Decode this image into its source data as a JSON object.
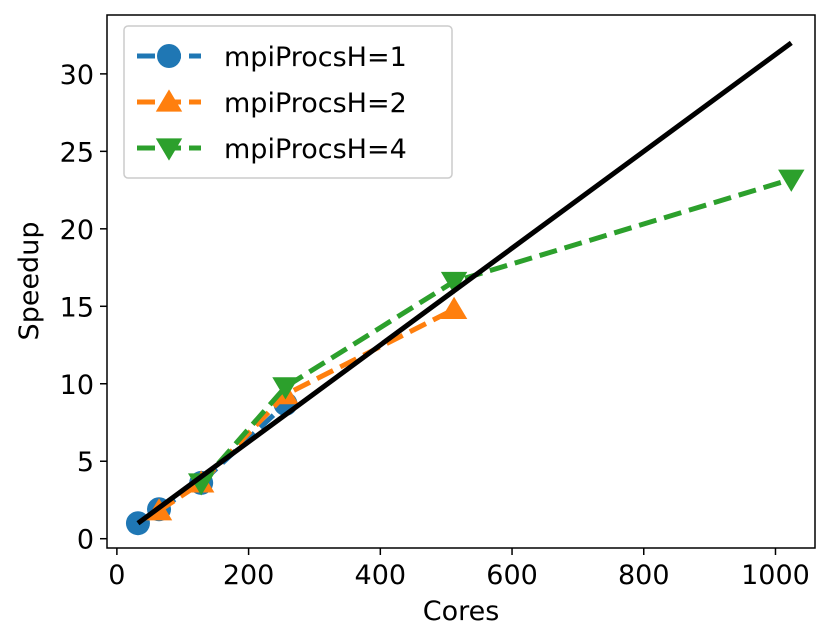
{
  "chart_data": {
    "type": "line",
    "xlabel": "Cores",
    "ylabel": "Speedup",
    "xlim": [
      -15,
      1060
    ],
    "ylim": [
      -0.6,
      33.8
    ],
    "xticks": [
      0,
      200,
      400,
      600,
      800,
      1000
    ],
    "yticks": [
      0,
      5,
      10,
      15,
      20,
      25,
      30
    ],
    "xtick_labels": [
      "0",
      "200",
      "400",
      "600",
      "800",
      "1000"
    ],
    "ytick_labels": [
      "0",
      "5",
      "10",
      "15",
      "20",
      "25",
      "30"
    ],
    "grid": false,
    "legend": {
      "position": "top-left"
    },
    "series": [
      {
        "name": "mpiProcsH=1",
        "color": "#1f77b4",
        "marker": "circle",
        "line_style": "dashed",
        "x": [
          32,
          64,
          128,
          256
        ],
        "y": [
          1.0,
          1.9,
          3.6,
          8.7
        ]
      },
      {
        "name": "mpiProcsH=2",
        "color": "#ff7f0e",
        "marker": "triangle-up",
        "line_style": "dashed",
        "x": [
          64,
          128,
          256,
          512
        ],
        "y": [
          1.8,
          3.6,
          9.3,
          14.8
        ]
      },
      {
        "name": "mpiProcsH=4",
        "color": "#2ca02c",
        "marker": "triangle-down",
        "line_style": "dashed",
        "x": [
          128,
          256,
          512,
          1024
        ],
        "y": [
          3.6,
          9.8,
          16.6,
          23.2
        ]
      }
    ],
    "reference_line": {
      "color": "#000000",
      "x": [
        32,
        1024
      ],
      "y": [
        1.0,
        32.0
      ]
    }
  }
}
